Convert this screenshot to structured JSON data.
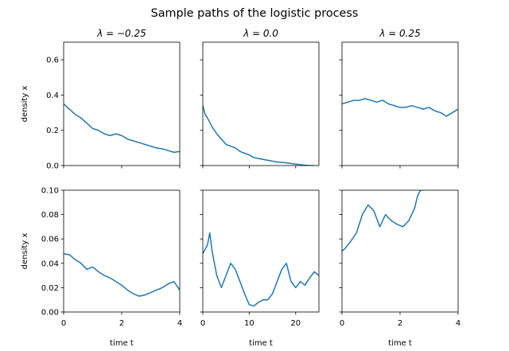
{
  "figure": {
    "suptitle": "Sample paths of the logistic process",
    "line_color": "#1f77b4"
  },
  "chart_data": [
    {
      "type": "line",
      "title": "λ = −0.25",
      "xlabel": "",
      "ylabel": "density x",
      "xlim": [
        0,
        4
      ],
      "ylim": [
        0,
        0.7
      ],
      "xticks": [
        0,
        2,
        4
      ],
      "yticks": [
        0.0,
        0.2,
        0.4,
        0.6
      ],
      "ytick_labels": [
        "0.0",
        "0.2",
        "0.4",
        "0.6"
      ],
      "xtick_labels": [],
      "series": [
        {
          "x": [
            0,
            0.2,
            0.4,
            0.6,
            0.8,
            1.0,
            1.2,
            1.4,
            1.6,
            1.8,
            2.0,
            2.2,
            2.4,
            2.6,
            2.8,
            3.0,
            3.2,
            3.4,
            3.6,
            3.8,
            4.0
          ],
          "y": [
            0.35,
            0.32,
            0.29,
            0.27,
            0.24,
            0.21,
            0.2,
            0.18,
            0.17,
            0.18,
            0.17,
            0.15,
            0.14,
            0.13,
            0.12,
            0.11,
            0.1,
            0.095,
            0.085,
            0.075,
            0.08
          ]
        }
      ]
    },
    {
      "type": "line",
      "title": "λ = 0.0",
      "xlabel": "",
      "ylabel": "",
      "xlim": [
        0,
        25
      ],
      "ylim": [
        0,
        0.7
      ],
      "xticks": [
        0,
        10,
        20
      ],
      "yticks": [
        0.0,
        0.2,
        0.4,
        0.6
      ],
      "ytick_labels": [],
      "xtick_labels": [],
      "series": [
        {
          "x": [
            0,
            0.5,
            1,
            2,
            3,
            4,
            5,
            6,
            7,
            8,
            9,
            10,
            11,
            12,
            13,
            14,
            15,
            16,
            17,
            18,
            19,
            20,
            21,
            22,
            23,
            24
          ],
          "y": [
            0.34,
            0.29,
            0.27,
            0.22,
            0.18,
            0.15,
            0.12,
            0.11,
            0.1,
            0.08,
            0.07,
            0.06,
            0.045,
            0.04,
            0.035,
            0.03,
            0.025,
            0.02,
            0.018,
            0.015,
            0.012,
            0.008,
            0.005,
            0.002,
            0.0,
            0.0
          ]
        }
      ]
    },
    {
      "type": "line",
      "title": "λ = 0.25",
      "xlabel": "",
      "ylabel": "",
      "xlim": [
        0,
        4
      ],
      "ylim": [
        0,
        0.7
      ],
      "xticks": [
        0,
        2,
        4
      ],
      "yticks": [
        0.0,
        0.2,
        0.4,
        0.6
      ],
      "ytick_labels": [],
      "xtick_labels": [],
      "series": [
        {
          "x": [
            0,
            0.2,
            0.4,
            0.6,
            0.8,
            1.0,
            1.2,
            1.4,
            1.6,
            1.8,
            2.0,
            2.2,
            2.4,
            2.6,
            2.8,
            3.0,
            3.2,
            3.4,
            3.6,
            3.8,
            4.0
          ],
          "y": [
            0.35,
            0.36,
            0.37,
            0.37,
            0.38,
            0.37,
            0.36,
            0.37,
            0.35,
            0.34,
            0.33,
            0.33,
            0.34,
            0.33,
            0.32,
            0.33,
            0.31,
            0.3,
            0.28,
            0.3,
            0.32
          ]
        }
      ]
    },
    {
      "type": "line",
      "title": "",
      "xlabel": "time t",
      "ylabel": "density x",
      "xlim": [
        0,
        4
      ],
      "ylim": [
        0,
        0.1
      ],
      "xticks": [
        0,
        2,
        4
      ],
      "yticks": [
        0.0,
        0.02,
        0.04,
        0.06,
        0.08,
        0.1
      ],
      "ytick_labels": [
        "0.00",
        "0.02",
        "0.04",
        "0.06",
        "0.08",
        "0.10"
      ],
      "xtick_labels": [
        "0",
        "2",
        "4"
      ],
      "series": [
        {
          "x": [
            0,
            0.2,
            0.4,
            0.6,
            0.8,
            1.0,
            1.2,
            1.4,
            1.6,
            1.8,
            2.0,
            2.2,
            2.4,
            2.6,
            2.8,
            3.0,
            3.2,
            3.4,
            3.6,
            3.8,
            4.0
          ],
          "y": [
            0.048,
            0.047,
            0.043,
            0.04,
            0.035,
            0.037,
            0.033,
            0.03,
            0.028,
            0.025,
            0.022,
            0.018,
            0.015,
            0.013,
            0.014,
            0.016,
            0.018,
            0.02,
            0.023,
            0.025,
            0.018
          ]
        }
      ]
    },
    {
      "type": "line",
      "title": "",
      "xlabel": "time t",
      "ylabel": "",
      "xlim": [
        0,
        25
      ],
      "ylim": [
        0,
        0.1
      ],
      "xticks": [
        0,
        10,
        20
      ],
      "yticks": [
        0.0,
        0.02,
        0.04,
        0.06,
        0.08,
        0.1
      ],
      "ytick_labels": [],
      "xtick_labels": [
        "0",
        "10",
        "20"
      ],
      "series": [
        {
          "x": [
            0,
            1,
            1.5,
            2,
            3,
            4,
            5,
            6,
            7,
            8,
            9,
            10,
            11,
            12,
            13,
            14,
            15,
            16,
            17,
            18,
            19,
            20,
            21,
            22,
            23,
            24,
            25
          ],
          "y": [
            0.048,
            0.055,
            0.065,
            0.05,
            0.03,
            0.02,
            0.03,
            0.04,
            0.035,
            0.025,
            0.015,
            0.006,
            0.005,
            0.008,
            0.01,
            0.01,
            0.015,
            0.025,
            0.035,
            0.04,
            0.025,
            0.02,
            0.025,
            0.022,
            0.028,
            0.033,
            0.03
          ]
        }
      ]
    },
    {
      "type": "line",
      "title": "",
      "xlabel": "time t",
      "ylabel": "",
      "xlim": [
        0,
        4
      ],
      "ylim": [
        0,
        0.1
      ],
      "xticks": [
        0,
        2,
        4
      ],
      "yticks": [
        0.0,
        0.02,
        0.04,
        0.06,
        0.08,
        0.1
      ],
      "ytick_labels": [],
      "xtick_labels": [
        "0",
        "2",
        "4"
      ],
      "series": [
        {
          "x": [
            0,
            0.1,
            0.3,
            0.5,
            0.7,
            0.9,
            1.1,
            1.3,
            1.5,
            1.7,
            1.9,
            2.1,
            2.3,
            2.5,
            2.6,
            2.7,
            2.8
          ],
          "y": [
            0.05,
            0.052,
            0.058,
            0.065,
            0.08,
            0.088,
            0.083,
            0.07,
            0.08,
            0.075,
            0.072,
            0.07,
            0.075,
            0.085,
            0.095,
            0.1,
            0.1
          ]
        }
      ]
    }
  ]
}
